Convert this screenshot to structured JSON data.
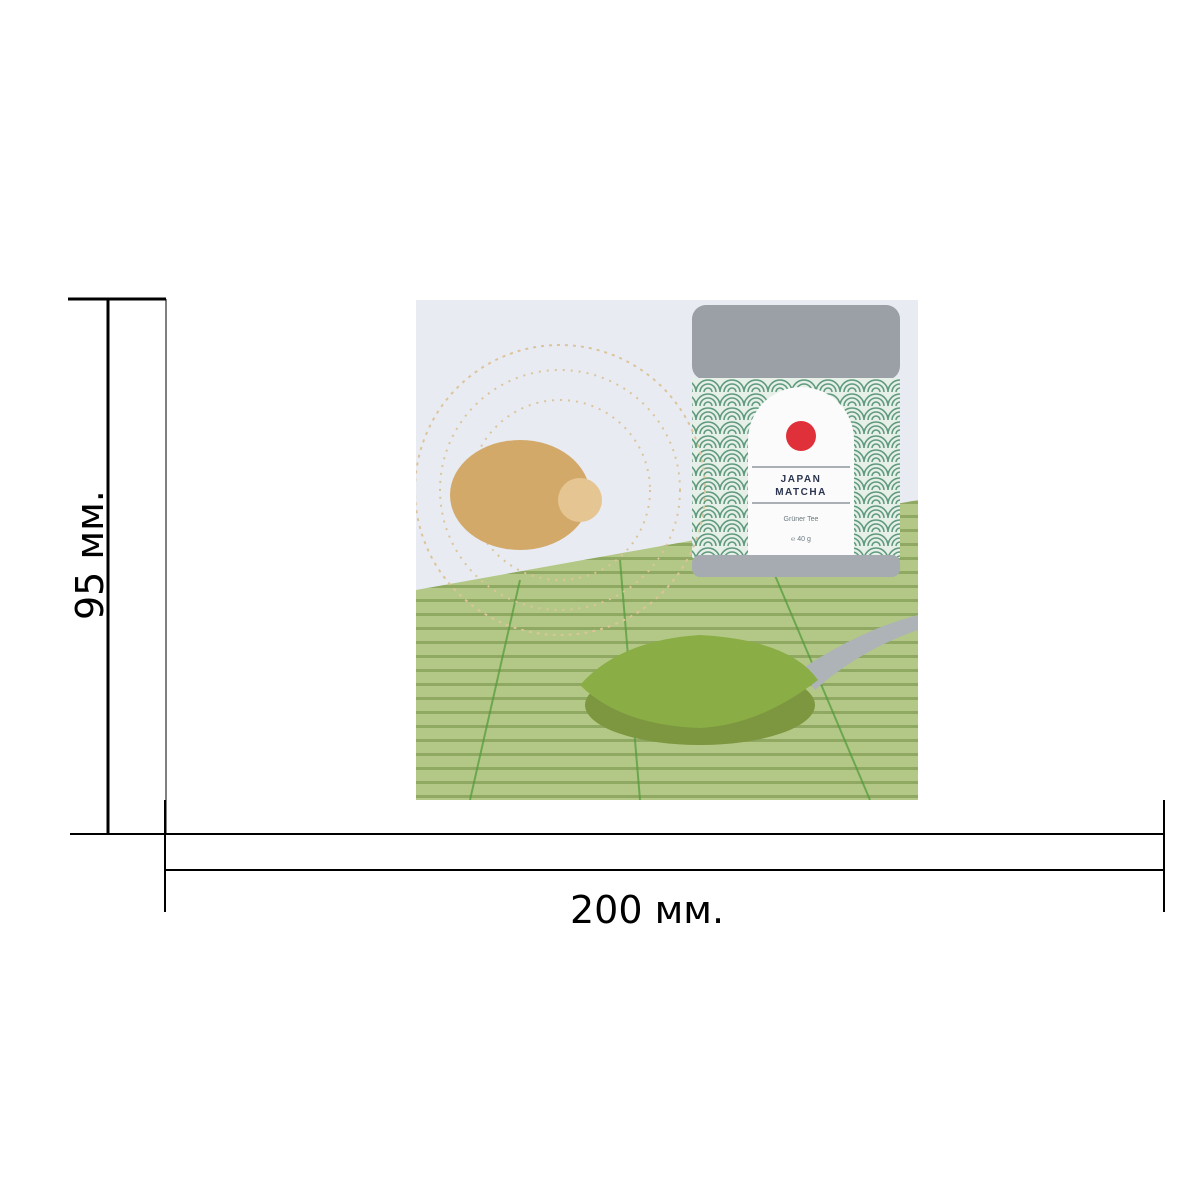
{
  "dimensions": {
    "width_label": "200 мм.",
    "height_label": "95 мм."
  },
  "photo": {
    "subject": "matcha",
    "can_label": {
      "line1": "JAPAN",
      "line2": "MATCHA",
      "subtitle": "Grüner Tee",
      "weight": "℮ 40 g"
    },
    "colors": {
      "matcha": "#8aad45",
      "mat": "#a9c07a",
      "sun": "#e0303a",
      "can_pattern": "#5f9a7d"
    }
  }
}
